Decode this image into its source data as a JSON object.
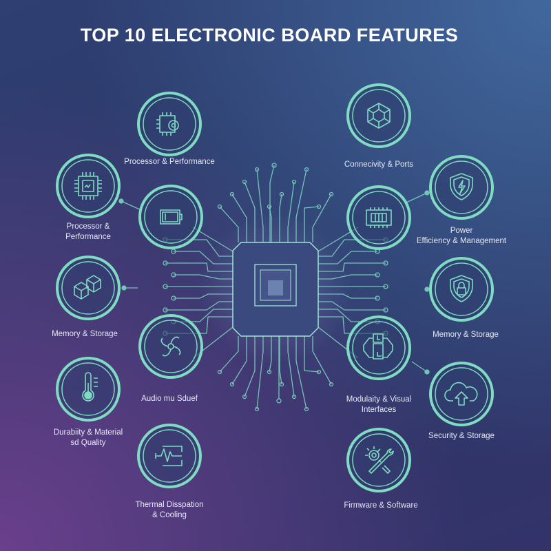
{
  "title": "TOP 10 ELECTRONIC BOARD FEATURES",
  "colors": {
    "accent": "#7fdcc2",
    "title": "#ffffff",
    "label": "#e4e8f2"
  },
  "nodes": [
    {
      "id": "n1",
      "icon": "cpu-gear-icon",
      "label": "Processor & Performance"
    },
    {
      "id": "n2",
      "icon": "cpu-chip-icon",
      "label": "Processor &\nPerformance"
    },
    {
      "id": "n3",
      "icon": "battery-icon",
      "label": ""
    },
    {
      "id": "n4",
      "icon": "memory-blocks-icon",
      "label": "Memory & Storage"
    },
    {
      "id": "n5",
      "icon": "fan-icon",
      "label": "Audio mu Sduef"
    },
    {
      "id": "n6",
      "icon": "thermometer-icon",
      "label": "Durabiity & Material\nsd Quality"
    },
    {
      "id": "n7",
      "icon": "pulse-icon",
      "label": "Thermal Disspation\n& Cooling"
    },
    {
      "id": "n8",
      "icon": "network-icon",
      "label": "Connecivity & Ports"
    },
    {
      "id": "n9",
      "icon": "shield-bolt-icon",
      "label": "Power\nEfficiency & Management"
    },
    {
      "id": "n10",
      "icon": "ram-module-icon",
      "label": ""
    },
    {
      "id": "n11",
      "icon": "shield-lock-icon",
      "label": "Memory & Storage"
    },
    {
      "id": "n12",
      "icon": "modules-icon",
      "label": "Modulaity & Visual\nInterfaces"
    },
    {
      "id": "n13",
      "icon": "cloud-upload-icon",
      "label": "Security & Storage"
    },
    {
      "id": "n14",
      "icon": "gear-wrench-icon",
      "label": "Firmware & Software"
    }
  ]
}
